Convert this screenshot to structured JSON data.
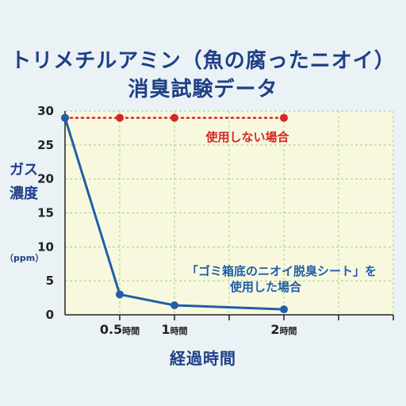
{
  "header": {
    "title_line1": "トリメチルアミン（魚の腐ったニオイ）",
    "title_line2": "消臭試験データ"
  },
  "axes": {
    "ylabel": "ガス濃度",
    "yunit": "（ppm）",
    "xlabel": "経過時間"
  },
  "colors": {
    "title": "#1f3f86",
    "plot_bg": "#f8f8df",
    "grid": "#9fcf8a",
    "untreated": "#d92525",
    "treated": "#1f5ea8"
  },
  "chart_data": {
    "type": "line",
    "xlim": [
      0,
      3
    ],
    "ylim": [
      0,
      30
    ],
    "y_ticks": [
      0,
      5,
      10,
      15,
      20,
      25,
      30
    ],
    "x_ticks": [
      {
        "value": 0.5,
        "label": "0.5",
        "unit": "時間"
      },
      {
        "value": 1,
        "label": "1",
        "unit": "時間"
      },
      {
        "value": 2,
        "label": "2",
        "unit": "時間"
      }
    ],
    "grid": true,
    "series": [
      {
        "name": "使用しない場合",
        "style": "dotted",
        "x": [
          0,
          0.5,
          1,
          2
        ],
        "y": [
          29,
          29,
          29,
          29
        ]
      },
      {
        "name": "「ゴミ箱底のニオイ脱臭シート」を\n使用した場合",
        "style": "solid",
        "x": [
          0,
          0.5,
          1,
          2
        ],
        "y": [
          29,
          3,
          1.4,
          0.8
        ]
      }
    ]
  }
}
